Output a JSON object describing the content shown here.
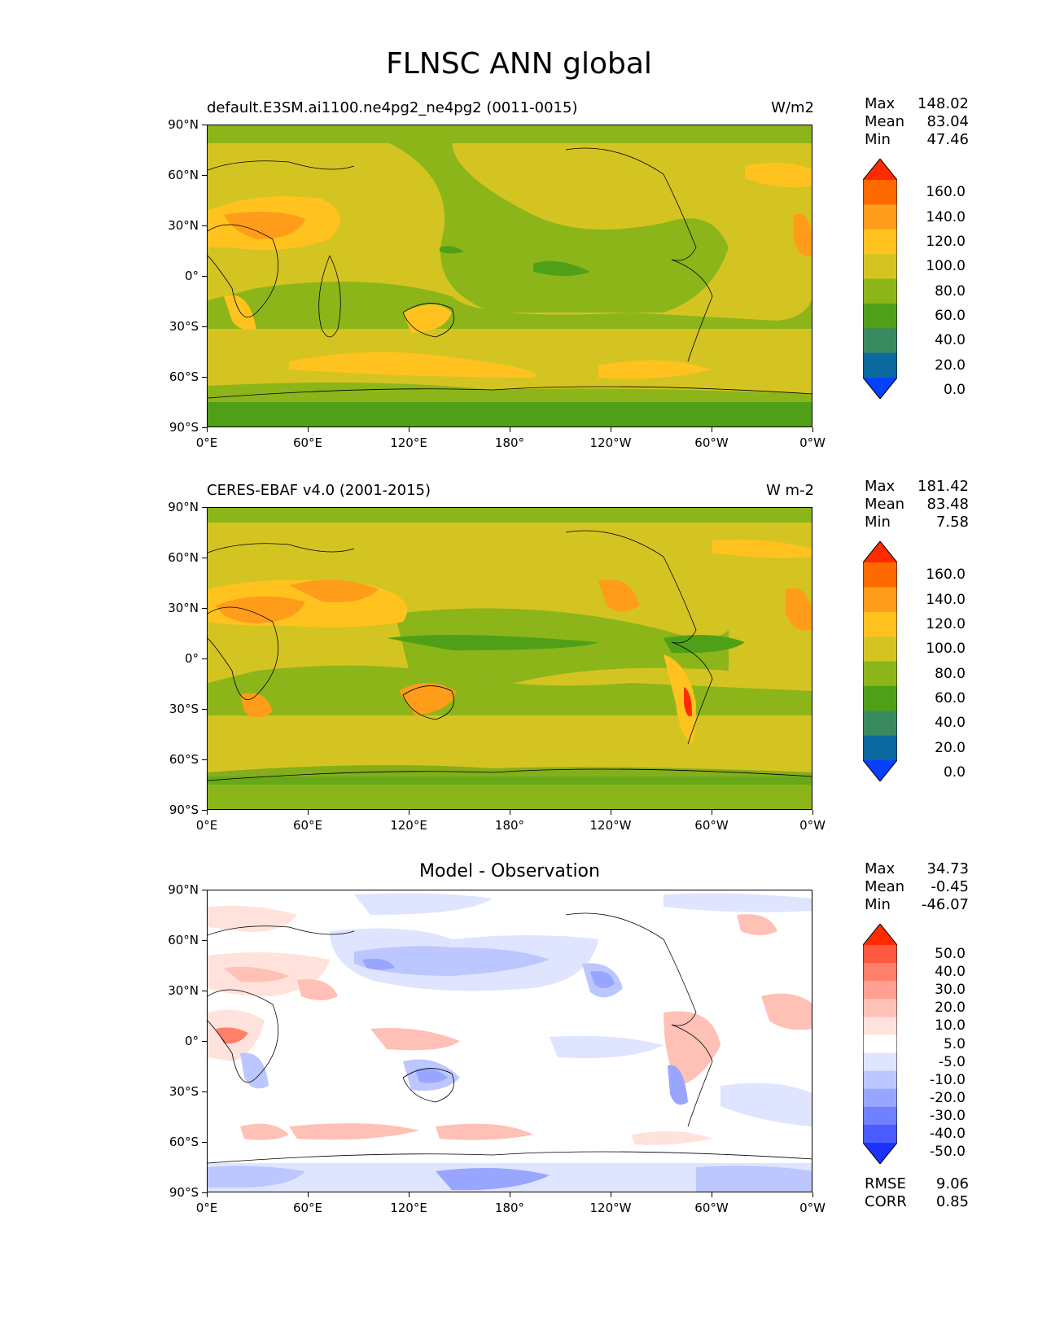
{
  "figure": {
    "title": "FLNSC ANN global"
  },
  "axes": {
    "y_ticks": [
      "90°N",
      "60°N",
      "30°N",
      "0°",
      "30°S",
      "60°S",
      "90°S"
    ],
    "x_ticks": [
      "0°E",
      "60°E",
      "120°E",
      "180°",
      "120°W",
      "60°W",
      "0°W"
    ]
  },
  "panels": [
    {
      "id": "model",
      "title_left": "default.E3SM.ai1100.ne4pg2_ne4pg2 (0011-0015)",
      "title_right": "W/m2",
      "title_center": "",
      "stats": [
        {
          "label": "Max",
          "value": "148.02"
        },
        {
          "label": "Mean",
          "value": "83.04"
        },
        {
          "label": "Min",
          "value": "47.46"
        }
      ],
      "colorbar_labels": [
        "160.0",
        "140.0",
        "120.0",
        "100.0",
        "80.0",
        "60.0",
        "40.0",
        "20.0",
        "0.0"
      ],
      "colorbar_colors": [
        "#ff2a00",
        "#ff6a00",
        "#ff9c1a",
        "#ffc21e",
        "#d4c422",
        "#8cb51a",
        "#4fa018",
        "#3a8a60",
        "#0a6aa0",
        "#0540ff"
      ]
    },
    {
      "id": "obs",
      "title_left": "CERES-EBAF v4.0 (2001-2015)",
      "title_right": "W m-2",
      "title_center": "",
      "stats": [
        {
          "label": "Max",
          "value": "181.42"
        },
        {
          "label": "Mean",
          "value": "83.48"
        },
        {
          "label": "Min",
          "value": "7.58"
        }
      ],
      "colorbar_labels": [
        "160.0",
        "140.0",
        "120.0",
        "100.0",
        "80.0",
        "60.0",
        "40.0",
        "20.0",
        "0.0"
      ],
      "colorbar_colors": [
        "#ff2a00",
        "#ff6a00",
        "#ff9c1a",
        "#ffc21e",
        "#d4c422",
        "#8cb51a",
        "#4fa018",
        "#3a8a60",
        "#0a6aa0",
        "#0540ff"
      ]
    },
    {
      "id": "diff",
      "title_left": "",
      "title_right": "",
      "title_center": "Model - Observation",
      "stats": [
        {
          "label": "Max",
          "value": "34.73"
        },
        {
          "label": "Mean",
          "value": "-0.45"
        },
        {
          "label": "Min",
          "value": "-46.07"
        }
      ],
      "colorbar_labels": [
        "50.0",
        "40.0",
        "30.0",
        "20.0",
        "10.0",
        "5.0",
        "-5.0",
        "-10.0",
        "-20.0",
        "-30.0",
        "-40.0",
        "-50.0"
      ],
      "colorbar_colors": [
        "#ff2a00",
        "#ff5a40",
        "#ff7f6a",
        "#ffa090",
        "#ffc0b5",
        "#ffe2dc",
        "#ffffff",
        "#dfe4ff",
        "#bcc6ff",
        "#98a6ff",
        "#7080ff",
        "#4a5cff",
        "#1e32ff"
      ],
      "extra_stats": [
        {
          "label": "RMSE",
          "value": "9.06"
        },
        {
          "label": "CORR",
          "value": "0.85"
        }
      ]
    }
  ]
}
